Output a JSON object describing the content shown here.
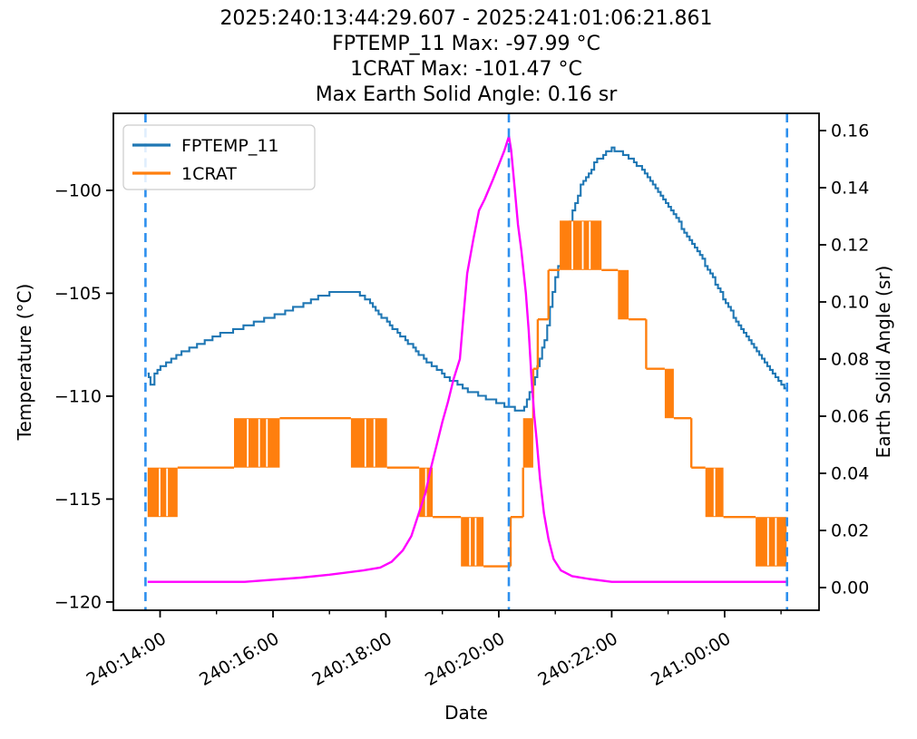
{
  "title": {
    "lines": [
      "2025:240:13:44:29.607 - 2025:241:01:06:21.861",
      "FPTEMP_11 Max: -97.99 °C",
      "1CRAT Max: -101.47 °C",
      "Max Earth Solid Angle: 0.16 sr"
    ]
  },
  "legend": {
    "items": [
      {
        "label": "FPTEMP_11",
        "color": "#1f77b4"
      },
      {
        "label": "1CRAT",
        "color": "#ff7f0e"
      }
    ]
  },
  "colors": {
    "fptemp": "#1f77b4",
    "crat": "#ff7f0e",
    "solid_angle": "#ff00ff",
    "event_vline": "#2e90ee",
    "spine": "#000000",
    "legend_border": "#cccccc"
  },
  "chart_data": {
    "type": "line",
    "title": "2025:240:13:44:29.607 - 2025:241:01:06:21.861",
    "xlabel": "Date",
    "ylabel_left": "Temperature (°C)",
    "ylabel_right": "Earth Solid Angle (sr)",
    "x_axis": {
      "units": "hours since 2025:240:00:00:00",
      "range_hours": [
        13.1728,
        25.6728
      ],
      "major_ticks": [
        {
          "t": 14,
          "label": "240:14:00"
        },
        {
          "t": 16,
          "label": "240:16:00"
        },
        {
          "t": 18,
          "label": "240:18:00"
        },
        {
          "t": 20,
          "label": "240:20:00"
        },
        {
          "t": 22,
          "label": "240:22:00"
        },
        {
          "t": 24,
          "label": "241:00:00"
        }
      ],
      "minor_ticks": [
        15,
        17,
        19,
        21,
        23,
        25
      ]
    },
    "y_left": {
      "range": [
        -120.4,
        -96.26
      ],
      "ticks": [
        {
          "v": -100,
          "label": "−100"
        },
        {
          "v": -105,
          "label": "−105"
        },
        {
          "v": -110,
          "label": "−110"
        },
        {
          "v": -115,
          "label": "−115"
        },
        {
          "v": -120,
          "label": "−120"
        }
      ]
    },
    "y_right": {
      "range": [
        -0.00794,
        0.16603
      ],
      "ticks": [
        {
          "v": 0.16,
          "label": "0.16"
        },
        {
          "v": 0.14,
          "label": "0.14"
        },
        {
          "v": 0.12,
          "label": "0.12"
        },
        {
          "v": 0.1,
          "label": "0.10"
        },
        {
          "v": 0.08,
          "label": "0.08"
        },
        {
          "v": 0.06,
          "label": "0.06"
        },
        {
          "v": 0.04,
          "label": "0.04"
        },
        {
          "v": 0.02,
          "label": "0.02"
        },
        {
          "v": 0.0,
          "label": "0.00"
        }
      ]
    },
    "vlines_t": [
      13.7416,
      20.178,
      25.1061
    ],
    "series": [
      {
        "name": "FPTEMP_11",
        "axis": "left",
        "style": "quantized-step",
        "color": "#1f77b4",
        "max_label": "-97.99 °C",
        "points": [
          [
            13.78,
            -108.9
          ],
          [
            13.8,
            -109.15
          ],
          [
            13.83,
            -109.45
          ],
          [
            13.9,
            -108.85
          ],
          [
            14.06,
            -108.5
          ],
          [
            14.38,
            -107.9
          ],
          [
            14.7,
            -107.45
          ],
          [
            15.02,
            -107.05
          ],
          [
            15.34,
            -106.75
          ],
          [
            15.66,
            -106.45
          ],
          [
            15.98,
            -106.15
          ],
          [
            16.31,
            -105.8
          ],
          [
            16.63,
            -105.4
          ],
          [
            16.8,
            -105.15
          ],
          [
            17.0,
            -105.0
          ],
          [
            17.3,
            -104.95
          ],
          [
            17.54,
            -105.05
          ],
          [
            17.72,
            -105.5
          ],
          [
            18.07,
            -106.6
          ],
          [
            18.39,
            -107.4
          ],
          [
            18.72,
            -108.3
          ],
          [
            19.04,
            -109.0
          ],
          [
            19.36,
            -109.6
          ],
          [
            19.68,
            -110.0
          ],
          [
            20.0,
            -110.35
          ],
          [
            20.15,
            -110.5
          ],
          [
            20.33,
            -110.7
          ],
          [
            20.45,
            -110.55
          ],
          [
            20.64,
            -109.0
          ],
          [
            20.81,
            -107.3
          ],
          [
            21.0,
            -104.2
          ],
          [
            21.21,
            -101.9
          ],
          [
            21.45,
            -99.8
          ],
          [
            21.69,
            -98.7
          ],
          [
            21.85,
            -98.25
          ],
          [
            22.0,
            -98.0
          ],
          [
            22.1,
            -98.05
          ],
          [
            22.25,
            -98.3
          ],
          [
            22.49,
            -98.9
          ],
          [
            22.73,
            -99.7
          ],
          [
            23.05,
            -101.0
          ],
          [
            23.38,
            -102.4
          ],
          [
            23.7,
            -103.8
          ],
          [
            24.02,
            -105.5
          ],
          [
            24.34,
            -107.0
          ],
          [
            24.66,
            -108.2
          ],
          [
            24.9,
            -109.1
          ],
          [
            25.11,
            -109.7
          ]
        ]
      },
      {
        "name": "1CRAT",
        "axis": "left",
        "style": "segments",
        "color": "#ff7f0e",
        "max_label": "-101.47 °C",
        "segments": [
          {
            "k": "osc",
            "t0": 13.78,
            "t1": 14.31,
            "hi": -113.47,
            "lo": -115.87
          },
          {
            "k": "flat",
            "t0": 14.31,
            "t1": 15.31,
            "v": -113.47
          },
          {
            "k": "osc",
            "t0": 15.31,
            "t1": 16.12,
            "hi": -111.07,
            "lo": -113.47
          },
          {
            "k": "flat",
            "t0": 16.12,
            "t1": 17.38,
            "v": -111.07
          },
          {
            "k": "osc",
            "t0": 17.38,
            "t1": 18.02,
            "hi": -111.07,
            "lo": -113.47
          },
          {
            "k": "flat",
            "t0": 18.02,
            "t1": 18.59,
            "v": -113.47
          },
          {
            "k": "osc",
            "t0": 18.59,
            "t1": 18.83,
            "hi": -113.47,
            "lo": -115.87
          },
          {
            "k": "flat",
            "t0": 18.83,
            "t1": 19.33,
            "v": -115.87
          },
          {
            "k": "osc",
            "t0": 19.33,
            "t1": 19.73,
            "hi": -115.87,
            "lo": -118.27
          },
          {
            "k": "flat",
            "t0": 19.73,
            "t1": 20.21,
            "v": -118.27
          },
          {
            "k": "flat",
            "t0": 20.21,
            "t1": 20.43,
            "v": -115.87
          },
          {
            "k": "osc",
            "t0": 20.43,
            "t1": 20.61,
            "hi": -111.07,
            "lo": -113.47
          },
          {
            "k": "flat",
            "t0": 20.61,
            "t1": 20.69,
            "v": -108.67
          },
          {
            "k": "flat",
            "t0": 20.69,
            "t1": 20.88,
            "v": -106.27
          },
          {
            "k": "flat",
            "t0": 20.88,
            "t1": 21.08,
            "v": -103.87
          },
          {
            "k": "osc",
            "t0": 21.08,
            "t1": 21.82,
            "hi": -101.47,
            "lo": -103.87
          },
          {
            "k": "flat",
            "t0": 21.82,
            "t1": 22.11,
            "v": -103.87
          },
          {
            "k": "osc",
            "t0": 22.11,
            "t1": 22.3,
            "hi": -103.87,
            "lo": -106.27
          },
          {
            "k": "flat",
            "t0": 22.3,
            "t1": 22.61,
            "v": -106.27
          },
          {
            "k": "flat",
            "t0": 22.61,
            "t1": 22.94,
            "v": -108.67
          },
          {
            "k": "osc",
            "t0": 22.94,
            "t1": 23.1,
            "hi": -108.67,
            "lo": -111.07
          },
          {
            "k": "flat",
            "t0": 23.1,
            "t1": 23.41,
            "v": -111.07
          },
          {
            "k": "flat",
            "t0": 23.41,
            "t1": 23.66,
            "v": -113.47
          },
          {
            "k": "osc",
            "t0": 23.66,
            "t1": 23.98,
            "hi": -113.47,
            "lo": -115.87
          },
          {
            "k": "flat",
            "t0": 23.98,
            "t1": 24.55,
            "v": -115.87
          },
          {
            "k": "osc",
            "t0": 24.55,
            "t1": 25.1,
            "hi": -115.87,
            "lo": -118.27
          }
        ]
      },
      {
        "name": "Earth Solid Angle",
        "axis": "right",
        "style": "line",
        "color": "#ff00ff",
        "max_label": "0.16 sr",
        "points": [
          [
            13.78,
            0.002
          ],
          [
            15.5,
            0.002
          ],
          [
            16.5,
            0.0035
          ],
          [
            17.0,
            0.0045
          ],
          [
            17.6,
            0.006
          ],
          [
            17.9,
            0.007
          ],
          [
            18.1,
            0.009
          ],
          [
            18.3,
            0.013
          ],
          [
            18.45,
            0.018
          ],
          [
            18.6,
            0.027
          ],
          [
            18.7,
            0.033
          ],
          [
            18.8,
            0.042
          ],
          [
            18.9,
            0.05
          ],
          [
            19.0,
            0.058
          ],
          [
            19.1,
            0.065
          ],
          [
            19.2,
            0.073
          ],
          [
            19.31,
            0.08
          ],
          [
            19.37,
            0.094
          ],
          [
            19.44,
            0.11
          ],
          [
            19.55,
            0.122
          ],
          [
            19.65,
            0.132
          ],
          [
            19.75,
            0.136
          ],
          [
            19.9,
            0.143
          ],
          [
            20.0,
            0.148
          ],
          [
            20.1,
            0.153
          ],
          [
            20.18,
            0.158
          ],
          [
            20.22,
            0.153
          ],
          [
            20.28,
            0.14
          ],
          [
            20.34,
            0.127
          ],
          [
            20.4,
            0.118
          ],
          [
            20.48,
            0.103
          ],
          [
            20.53,
            0.09
          ],
          [
            20.58,
            0.073
          ],
          [
            20.63,
            0.06
          ],
          [
            20.67,
            0.052
          ],
          [
            20.73,
            0.038
          ],
          [
            20.8,
            0.026
          ],
          [
            20.88,
            0.017
          ],
          [
            20.97,
            0.01
          ],
          [
            21.1,
            0.006
          ],
          [
            21.3,
            0.004
          ],
          [
            21.6,
            0.003
          ],
          [
            22.0,
            0.002
          ],
          [
            25.1,
            0.002
          ]
        ]
      }
    ]
  }
}
